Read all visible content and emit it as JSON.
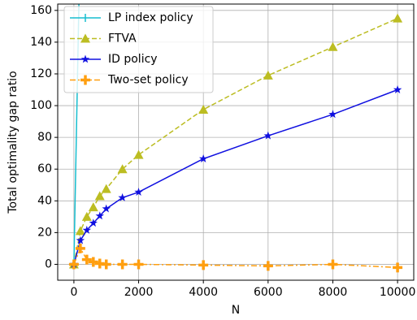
{
  "chart_data": {
    "type": "line",
    "x_label": "N",
    "y_label": "Total optimality gap ratio",
    "xlim": [
      -500,
      10500
    ],
    "ylim": [
      -10,
      164
    ],
    "xticks": [
      0,
      2000,
      4000,
      6000,
      8000,
      10000
    ],
    "yticks": [
      0,
      20,
      40,
      60,
      80,
      100,
      120,
      140,
      160
    ],
    "grid": true,
    "legend": "upper left",
    "series": [
      {
        "name": "LP index policy",
        "color": "#17becf",
        "marker": "line",
        "dash": "solid",
        "x": [
          0,
          200
        ],
        "values": [
          0,
          213
        ]
      },
      {
        "name": "FTVA",
        "color": "#bcbd22",
        "marker": "triangle",
        "dash": "dashed",
        "x": [
          0,
          200,
          400,
          600,
          800,
          1000,
          1500,
          2000,
          4000,
          6000,
          8000,
          10000
        ],
        "values": [
          0,
          21,
          30,
          36,
          43,
          47.5,
          60,
          69,
          97.5,
          119,
          137,
          155
        ]
      },
      {
        "name": "ID policy",
        "color": "#1010e0",
        "marker": "star",
        "dash": "solid",
        "x": [
          0,
          200,
          400,
          600,
          800,
          1000,
          1500,
          2000,
          4000,
          6000,
          8000,
          10000
        ],
        "values": [
          0,
          15,
          21.5,
          26,
          30.5,
          35,
          42,
          45.5,
          66.5,
          81,
          94.5,
          110
        ]
      },
      {
        "name": "Two-set policy",
        "color": "#ff9f10",
        "marker": "plus",
        "dash": "dashdot",
        "x": [
          0,
          200,
          400,
          600,
          800,
          1000,
          1500,
          2000,
          4000,
          6000,
          8000,
          10000
        ],
        "values": [
          0,
          10,
          3,
          1.5,
          0.5,
          0,
          0,
          0,
          -0.5,
          -1,
          0,
          -2
        ]
      }
    ]
  }
}
